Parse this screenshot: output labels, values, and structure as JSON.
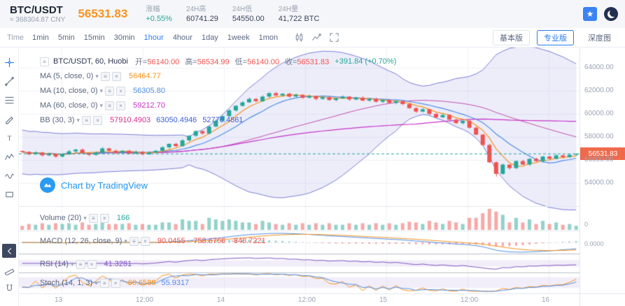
{
  "colors": {
    "accent_blue": "#2b7de9",
    "up_green": "#26a69a",
    "down_red": "#ef5350",
    "price_orange": "#f7941d",
    "tag_bg": "#ef6a4c"
  },
  "icons": {
    "favorite": "★",
    "caret": "▾",
    "series": "≡"
  },
  "ui": {
    "mini_icons": [
      {
        "name": "indicator-settings-icon",
        "glyph": "≡"
      },
      {
        "name": "indicator-close-icon",
        "glyph": "×"
      }
    ]
  },
  "header": {
    "symbol": "BTC/USDT",
    "approx_cny": "≈ 368304.87 CNY",
    "price": "56531.83",
    "stats": [
      {
        "key": "change",
        "label": "涨幅",
        "value": "+0.55%",
        "color": "#26a69a"
      },
      {
        "key": "high24h",
        "label": "24H高",
        "value": "60741.29"
      },
      {
        "key": "low24h",
        "label": "24H低",
        "value": "54550.00"
      },
      {
        "key": "volume24h",
        "label": "24H量",
        "value": "41,722 BTC"
      }
    ]
  },
  "toolbar": {
    "time_label": "Time",
    "intervals": [
      "1min",
      "5min",
      "15min",
      "30min",
      "1hour",
      "4hour",
      "1day",
      "1week",
      "1mon"
    ],
    "active_interval": "1hour",
    "views": [
      {
        "id": "basic",
        "label": "基本版",
        "kind": "boxed"
      },
      {
        "id": "pro",
        "label": "专业版",
        "kind": "boxed",
        "active": true
      },
      {
        "id": "depth",
        "label": "深度图",
        "kind": "plain"
      }
    ]
  },
  "sidebar": {
    "tools": [
      {
        "name": "crosshair-tool",
        "icon": "crosshair",
        "active": true
      },
      {
        "name": "trend-line-tool",
        "icon": "trendline"
      },
      {
        "name": "fibonacci-tool",
        "icon": "fib"
      },
      {
        "name": "brush-tool",
        "icon": "brush"
      },
      {
        "name": "text-tool",
        "icon": "text"
      },
      {
        "name": "pattern-tool",
        "icon": "pattern"
      },
      {
        "name": "wave-tool",
        "icon": "wave"
      },
      {
        "name": "position-tool",
        "icon": "box"
      }
    ],
    "tools_bottom": [
      {
        "name": "collapse-toolbar-button",
        "icon": "collapse",
        "dark": true
      },
      {
        "name": "ruler-tool",
        "icon": "ruler"
      },
      {
        "name": "magnet-tool",
        "icon": "magnet"
      }
    ]
  },
  "legend": {
    "title": "BTC/USDT, 60, Huobi",
    "sep": "=",
    "items": [
      {
        "key": "open",
        "label": "开",
        "value": "56140.00",
        "color": "#ef5350"
      },
      {
        "key": "high",
        "label": "高",
        "value": "56534.99",
        "color": "#ef5350"
      },
      {
        "key": "low",
        "label": "低",
        "value": "56140.00",
        "color": "#ef5350"
      },
      {
        "key": "close",
        "label": "收",
        "value": "56531.83",
        "color": "#ef5350"
      }
    ],
    "change": "+391.84 (+0.70%)",
    "change_color": "#26a69a"
  },
  "indicators": [
    {
      "name": "MA (5, close, 0)",
      "values": [
        {
          "text": "56464.77",
          "color": "#f7941d"
        }
      ]
    },
    {
      "name": "MA (10, close, 0)",
      "values": [
        {
          "text": "56305.80",
          "color": "#4f8fe8"
        }
      ]
    },
    {
      "name": "MA (60, close, 0)",
      "values": [
        {
          "text": "59212.70",
          "color": "#c833c8"
        }
      ]
    },
    {
      "name": "BB (30, 3)",
      "values": [
        {
          "text": "57910.4903",
          "color": "#d6318f"
        },
        {
          "text": "63050.4946",
          "color": "#3b5fd9"
        },
        {
          "text": "52770.4861",
          "color": "#3b5fd9"
        }
      ]
    }
  ],
  "panels": [
    {
      "name": "Volume (20)",
      "values": [
        {
          "text": "166",
          "color": "#26a69a"
        }
      ]
    },
    {
      "name": "MACD (12, 26, close, 9)",
      "values": [
        {
          "text": "90.0455",
          "color": "#ef5350"
        },
        {
          "text": "-758.6766",
          "color": "#ef5350"
        },
        {
          "text": "-848.7221",
          "color": "#ef5350"
        }
      ]
    },
    {
      "name": "RSI (14)",
      "values": [
        {
          "text": "41.3281",
          "color": "#7e57c2"
        }
      ]
    },
    {
      "name": "Stoch (14, 1, 3)",
      "values": [
        {
          "text": "66.6589",
          "color": "#f7941d"
        },
        {
          "text": "55.9317",
          "color": "#4f8fe8"
        }
      ]
    }
  ],
  "axis": {
    "price_labels": [
      "64000.00",
      "62000.00",
      "60000.00",
      "58000.00",
      "56000.00",
      "54000.00"
    ],
    "current_price": "56531.83",
    "sub_labels": [
      {
        "panel": "volume",
        "text": "0"
      },
      {
        "panel": "macd",
        "text": "0.0000"
      }
    ],
    "time_labels": [
      "13",
      "12:00",
      "14",
      "12:00",
      "15",
      "12:00",
      "16"
    ]
  },
  "watermark": "Chart by TradingView",
  "chart_data": {
    "type": "candlestick",
    "symbol": "BTC/USDT",
    "interval_minutes": 60,
    "last_price": 56531.83,
    "low_anchor": 54550,
    "price_gridlines": [
      64000,
      62000,
      60000,
      58000,
      56000,
      54000
    ],
    "time_gridlines": [
      "13",
      "12:00",
      "14",
      "12:00",
      "15",
      "12:00",
      "16"
    ],
    "price_range": [
      52000,
      65750
    ],
    "closes": [
      56700,
      56500,
      56650,
      56400,
      56550,
      56300,
      56500,
      56750,
      56900,
      56600,
      56450,
      56650,
      57000,
      56800,
      56600,
      56800,
      56550,
      56700,
      56500,
      56650,
      56800,
      57100,
      57400,
      57200,
      57700,
      58100,
      58500,
      58300,
      58900,
      59400,
      59800,
      60300,
      60700,
      61000,
      61300,
      61100,
      61500,
      61800,
      61600,
      61750,
      61500,
      61650,
      61400,
      61550,
      61300,
      61450,
      61200,
      61350,
      61500,
      61250,
      61400,
      61150,
      61300,
      61050,
      61200,
      60950,
      61100,
      60850,
      60500,
      60200,
      60400,
      60000,
      59700,
      59900,
      59500,
      59200,
      59400,
      58800,
      58200,
      57300,
      55800,
      54800,
      55600,
      55300,
      55900,
      55600,
      56100,
      55900,
      56300,
      56100,
      56400,
      56250,
      56450,
      56531.83
    ]
  }
}
